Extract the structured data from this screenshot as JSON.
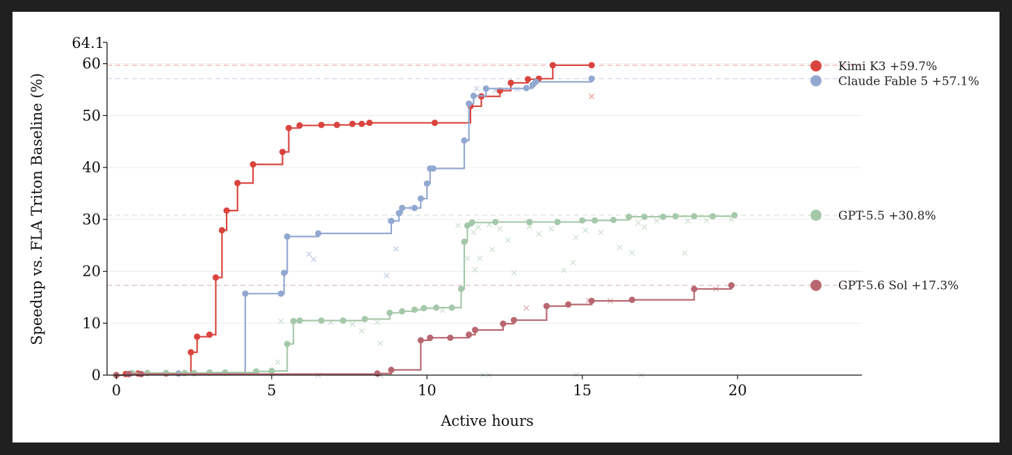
{
  "chart_data": {
    "type": "line",
    "title": "",
    "xlabel": "Active hours",
    "ylabel": "Speedup vs. FLA Triton Baseline (%)",
    "xlim": [
      -0.3,
      24
    ],
    "ylim": [
      0,
      64.1
    ],
    "x_ticks": [
      "0",
      "5",
      "10",
      "15",
      "20"
    ],
    "y_ticks": [
      "0",
      "10",
      "20",
      "30",
      "40",
      "50",
      "60"
    ],
    "y_top_label": "64.1",
    "grid": "horizontal",
    "legend_position": "right",
    "series": [
      {
        "name": "Kimi K3 +59.7%",
        "color": "#d9453e",
        "final": 59.7,
        "steps": [
          [
            0,
            0
          ],
          [
            0.3,
            0.2
          ],
          [
            0.7,
            0.3
          ],
          [
            1.6,
            0.3
          ],
          [
            2.4,
            4.4
          ],
          [
            2.6,
            7.4
          ],
          [
            3.0,
            7.8
          ],
          [
            3.2,
            18.8
          ],
          [
            3.4,
            27.9
          ],
          [
            3.55,
            31.7
          ],
          [
            3.9,
            37.0
          ],
          [
            4.4,
            40.6
          ],
          [
            5.35,
            43.0
          ],
          [
            5.55,
            47.6
          ],
          [
            5.9,
            48.1
          ],
          [
            6.6,
            48.2
          ],
          [
            7.1,
            48.2
          ],
          [
            7.6,
            48.4
          ],
          [
            7.9,
            48.4
          ],
          [
            8.15,
            48.6
          ],
          [
            10.25,
            48.6
          ],
          [
            11.4,
            51.8
          ],
          [
            11.75,
            53.7
          ],
          [
            12.35,
            54.8
          ],
          [
            12.7,
            56.3
          ],
          [
            13.25,
            57.0
          ],
          [
            13.6,
            57.1
          ],
          [
            14.05,
            59.7
          ],
          [
            15.3,
            59.7
          ]
        ],
        "extra_points": [
          [
            15.3,
            53.7
          ]
        ]
      },
      {
        "name": "Claude Fable 5 +57.1%",
        "color": "#92a8d1",
        "final": 57.1,
        "steps": [
          [
            0,
            0
          ],
          [
            0.4,
            0.2
          ],
          [
            2.0,
            0.3
          ],
          [
            4.15,
            15.7
          ],
          [
            5.3,
            15.7
          ],
          [
            5.4,
            19.7
          ],
          [
            5.5,
            26.7
          ],
          [
            6.5,
            27.3
          ],
          [
            8.85,
            29.7
          ],
          [
            9.1,
            31.2
          ],
          [
            9.2,
            32.2
          ],
          [
            9.6,
            32.2
          ],
          [
            9.8,
            34.0
          ],
          [
            10.0,
            36.9
          ],
          [
            10.1,
            39.8
          ],
          [
            10.2,
            39.8
          ],
          [
            11.2,
            45.2
          ],
          [
            11.35,
            52.3
          ],
          [
            11.5,
            53.8
          ],
          [
            11.9,
            55.2
          ],
          [
            13.2,
            55.3
          ],
          [
            13.4,
            55.9
          ],
          [
            13.5,
            56.5
          ],
          [
            15.3,
            57.1
          ]
        ],
        "extra_points": [
          [
            5.0,
            0.3
          ],
          [
            6.5,
            0
          ],
          [
            8.5,
            0
          ],
          [
            9.0,
            24.3
          ],
          [
            8.7,
            19.2
          ],
          [
            6.2,
            23.3
          ],
          [
            6.35,
            22.3
          ],
          [
            8.8,
            29.8
          ],
          [
            9.5,
            32.2
          ],
          [
            11.6,
            55.2
          ],
          [
            12.2,
            54.8
          ],
          [
            12.9,
            55.1
          ],
          [
            13.3,
            55.4
          ]
        ]
      },
      {
        "name": "GPT-5.5 +30.8%",
        "color": "#a5c8aa",
        "final": 30.8,
        "steps": [
          [
            0,
            0
          ],
          [
            0.5,
            0.4
          ],
          [
            1.0,
            0.4
          ],
          [
            1.6,
            0.4
          ],
          [
            2.2,
            0.4
          ],
          [
            2.5,
            0.4
          ],
          [
            3.0,
            0.5
          ],
          [
            3.5,
            0.5
          ],
          [
            4.5,
            0.7
          ],
          [
            5.0,
            0.8
          ],
          [
            5.5,
            6.0
          ],
          [
            5.7,
            10.4
          ],
          [
            5.9,
            10.5
          ],
          [
            6.6,
            10.5
          ],
          [
            7.3,
            10.5
          ],
          [
            8.0,
            10.8
          ],
          [
            8.8,
            12.0
          ],
          [
            9.2,
            12.3
          ],
          [
            9.6,
            12.6
          ],
          [
            9.9,
            12.9
          ],
          [
            10.3,
            13.0
          ],
          [
            10.8,
            13.0
          ],
          [
            11.1,
            16.6
          ],
          [
            11.2,
            25.7
          ],
          [
            11.3,
            28.8
          ],
          [
            11.45,
            29.4
          ],
          [
            12.2,
            29.5
          ],
          [
            13.3,
            29.5
          ],
          [
            14.2,
            29.5
          ],
          [
            15.0,
            29.8
          ],
          [
            15.4,
            29.8
          ],
          [
            16.0,
            29.9
          ],
          [
            16.5,
            30.5
          ],
          [
            17.0,
            30.5
          ],
          [
            17.6,
            30.5
          ],
          [
            18.0,
            30.6
          ],
          [
            18.6,
            30.6
          ],
          [
            19.2,
            30.6
          ],
          [
            19.9,
            30.8
          ]
        ],
        "extra_points": [
          [
            5.3,
            10.4
          ],
          [
            5.2,
            2.5
          ],
          [
            6.9,
            10.2
          ],
          [
            7.6,
            9.8
          ],
          [
            7.9,
            8.5
          ],
          [
            8.4,
            10.2
          ],
          [
            8.5,
            6.1
          ],
          [
            10.5,
            12.5
          ],
          [
            11.0,
            28.8
          ],
          [
            11.3,
            22.5
          ],
          [
            11.55,
            20.3
          ],
          [
            11.5,
            27.5
          ],
          [
            11.65,
            28.5
          ],
          [
            11.7,
            22.5
          ],
          [
            12.0,
            29.0
          ],
          [
            12.1,
            24.2
          ],
          [
            12.35,
            28.2
          ],
          [
            12.6,
            26.0
          ],
          [
            12.8,
            19.7
          ],
          [
            13.3,
            28.6
          ],
          [
            13.6,
            27.2
          ],
          [
            14.0,
            28.2
          ],
          [
            14.4,
            20.2
          ],
          [
            14.7,
            21.7
          ],
          [
            14.8,
            26.5
          ],
          [
            15.1,
            27.9
          ],
          [
            15.6,
            27.5
          ],
          [
            16.2,
            24.6
          ],
          [
            16.6,
            23.6
          ],
          [
            16.8,
            29.3
          ],
          [
            17.0,
            28.5
          ],
          [
            17.4,
            29.7
          ],
          [
            18.3,
            23.5
          ],
          [
            18.4,
            29.7
          ],
          [
            19.0,
            29.8
          ],
          [
            19.8,
            30.0
          ],
          [
            11.8,
            0
          ],
          [
            12.0,
            0
          ],
          [
            14.8,
            0
          ],
          [
            16.9,
            0
          ]
        ]
      },
      {
        "name": "GPT-5.6 Sol +17.3%",
        "color": "#b86770",
        "final": 17.3,
        "steps": [
          [
            0,
            0
          ],
          [
            0.4,
            0.2
          ],
          [
            0.8,
            0.2
          ],
          [
            8.4,
            0.3
          ],
          [
            8.85,
            1.0
          ],
          [
            9.8,
            6.7
          ],
          [
            10.1,
            7.2
          ],
          [
            10.75,
            7.2
          ],
          [
            11.35,
            7.8
          ],
          [
            11.55,
            8.7
          ],
          [
            12.45,
            9.9
          ],
          [
            12.8,
            10.6
          ],
          [
            13.85,
            13.3
          ],
          [
            14.55,
            13.6
          ],
          [
            15.3,
            14.3
          ],
          [
            16.6,
            14.5
          ],
          [
            18.6,
            16.6
          ],
          [
            19.8,
            17.3
          ]
        ],
        "extra_points": [
          [
            13.2,
            12.9
          ],
          [
            15.2,
            14.4
          ],
          [
            15.9,
            14.3
          ],
          [
            19.3,
            16.6
          ]
        ]
      }
    ]
  }
}
